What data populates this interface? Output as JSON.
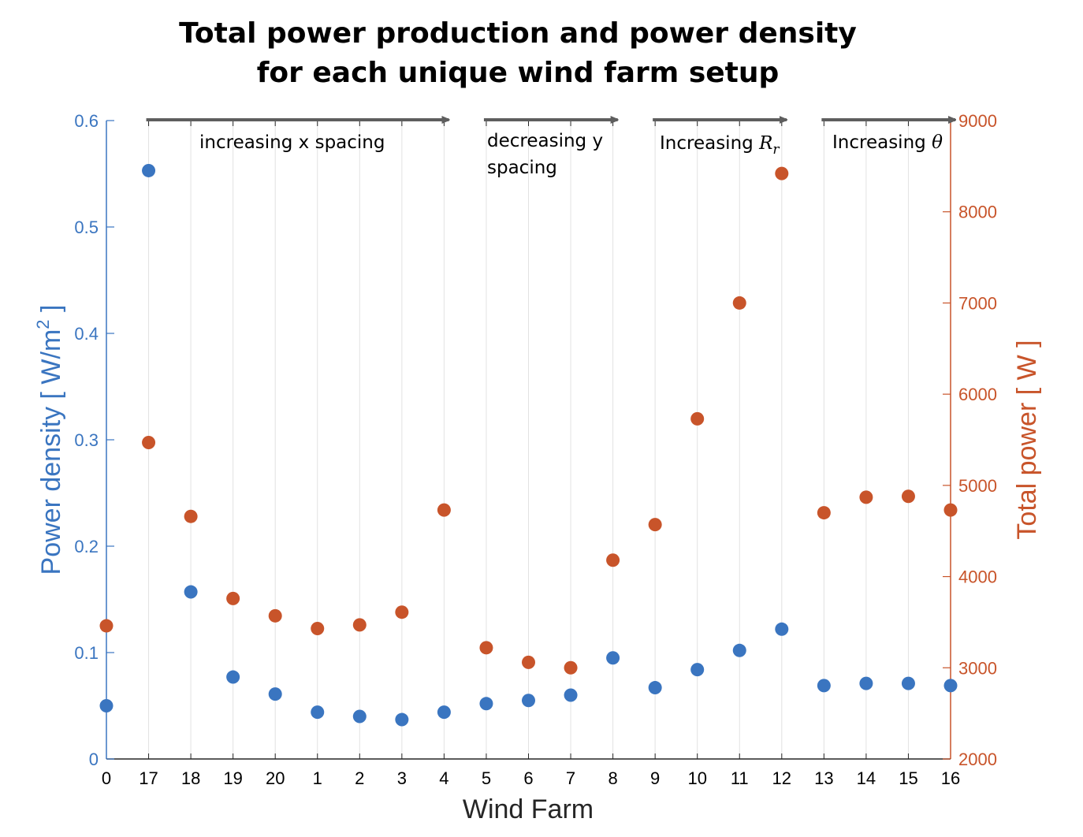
{
  "title_line1": "Total power production and power density",
  "title_line2": "for each unique wind farm setup",
  "chart_data": {
    "type": "scatter",
    "xlabel": "Wind Farm",
    "ylabel_left": "Power density  [ W/m",
    "ylabel_left_sup": "2",
    "ylabel_left_end": " ]",
    "ylabel_right": "Total power  [ W ]",
    "categories": [
      "0",
      "17",
      "18",
      "19",
      "20",
      "1",
      "2",
      "3",
      "4",
      "5",
      "6",
      "7",
      "8",
      "9",
      "10",
      "11",
      "12",
      "13",
      "14",
      "15",
      "16"
    ],
    "ylim_left": [
      0,
      0.6
    ],
    "yticks_left": [
      "0",
      "0.1",
      "0.2",
      "0.3",
      "0.4",
      "0.5",
      "0.6"
    ],
    "ylim_right": [
      2000,
      9000
    ],
    "yticks_right": [
      "2000",
      "3000",
      "4000",
      "5000",
      "6000",
      "7000",
      "8000",
      "9000"
    ],
    "grid": "vertical",
    "series": [
      {
        "axis": "left",
        "color": "#3a75c0",
        "values": [
          0.05,
          0.553,
          0.157,
          0.077,
          0.061,
          0.044,
          0.04,
          0.037,
          0.044,
          0.052,
          0.055,
          0.06,
          0.095,
          0.067,
          0.084,
          0.102,
          0.122,
          0.069,
          0.071,
          0.071,
          0.069
        ]
      },
      {
        "axis": "right",
        "color": "#c8542a",
        "values": [
          3460,
          5470,
          4660,
          3760,
          3570,
          3430,
          3470,
          3610,
          4730,
          3220,
          3060,
          3000,
          4180,
          4570,
          5730,
          7000,
          8420,
          4700,
          4870,
          4880,
          4730
        ]
      }
    ],
    "annotations": [
      {
        "text": "increasing x spacing",
        "from": "17",
        "to": "4"
      },
      {
        "text": "decreasing y",
        "text2": "spacing",
        "from": "5",
        "to": "8"
      },
      {
        "text": "Increasing ",
        "math": "R",
        "math_sub": "r",
        "from": "9",
        "to": "12"
      },
      {
        "text": "Increasing ",
        "math": "θ",
        "from": "13",
        "to": "16"
      }
    ]
  }
}
